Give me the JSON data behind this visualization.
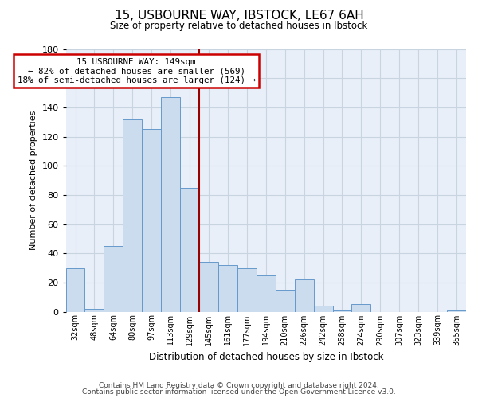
{
  "title": "15, USBOURNE WAY, IBSTOCK, LE67 6AH",
  "subtitle": "Size of property relative to detached houses in Ibstock",
  "xlabel": "Distribution of detached houses by size in Ibstock",
  "ylabel": "Number of detached properties",
  "bar_labels": [
    "32sqm",
    "48sqm",
    "64sqm",
    "80sqm",
    "97sqm",
    "113sqm",
    "129sqm",
    "145sqm",
    "161sqm",
    "177sqm",
    "194sqm",
    "210sqm",
    "226sqm",
    "242sqm",
    "258sqm",
    "274sqm",
    "290sqm",
    "307sqm",
    "323sqm",
    "339sqm",
    "355sqm"
  ],
  "bar_values": [
    30,
    2,
    45,
    132,
    125,
    147,
    85,
    34,
    32,
    30,
    25,
    15,
    22,
    4,
    1,
    5,
    0,
    0,
    0,
    0,
    1
  ],
  "bar_color": "#ccdcef",
  "bar_edge_color": "#6699cc",
  "annotation_title": "15 USBOURNE WAY: 149sqm",
  "annotation_line1": "← 82% of detached houses are smaller (569)",
  "annotation_line2": "18% of semi-detached houses are larger (124) →",
  "annotation_box_color": "#ffffff",
  "annotation_box_edge": "#cc0000",
  "vline_color": "#990000",
  "ylim": [
    0,
    180
  ],
  "yticks": [
    0,
    20,
    40,
    60,
    80,
    100,
    120,
    140,
    160,
    180
  ],
  "footer_line1": "Contains HM Land Registry data © Crown copyright and database right 2024.",
  "footer_line2": "Contains public sector information licensed under the Open Government Licence v3.0.",
  "bg_color": "#ffffff",
  "plot_bg_color": "#e8eff8",
  "grid_color": "#c8d4e0"
}
